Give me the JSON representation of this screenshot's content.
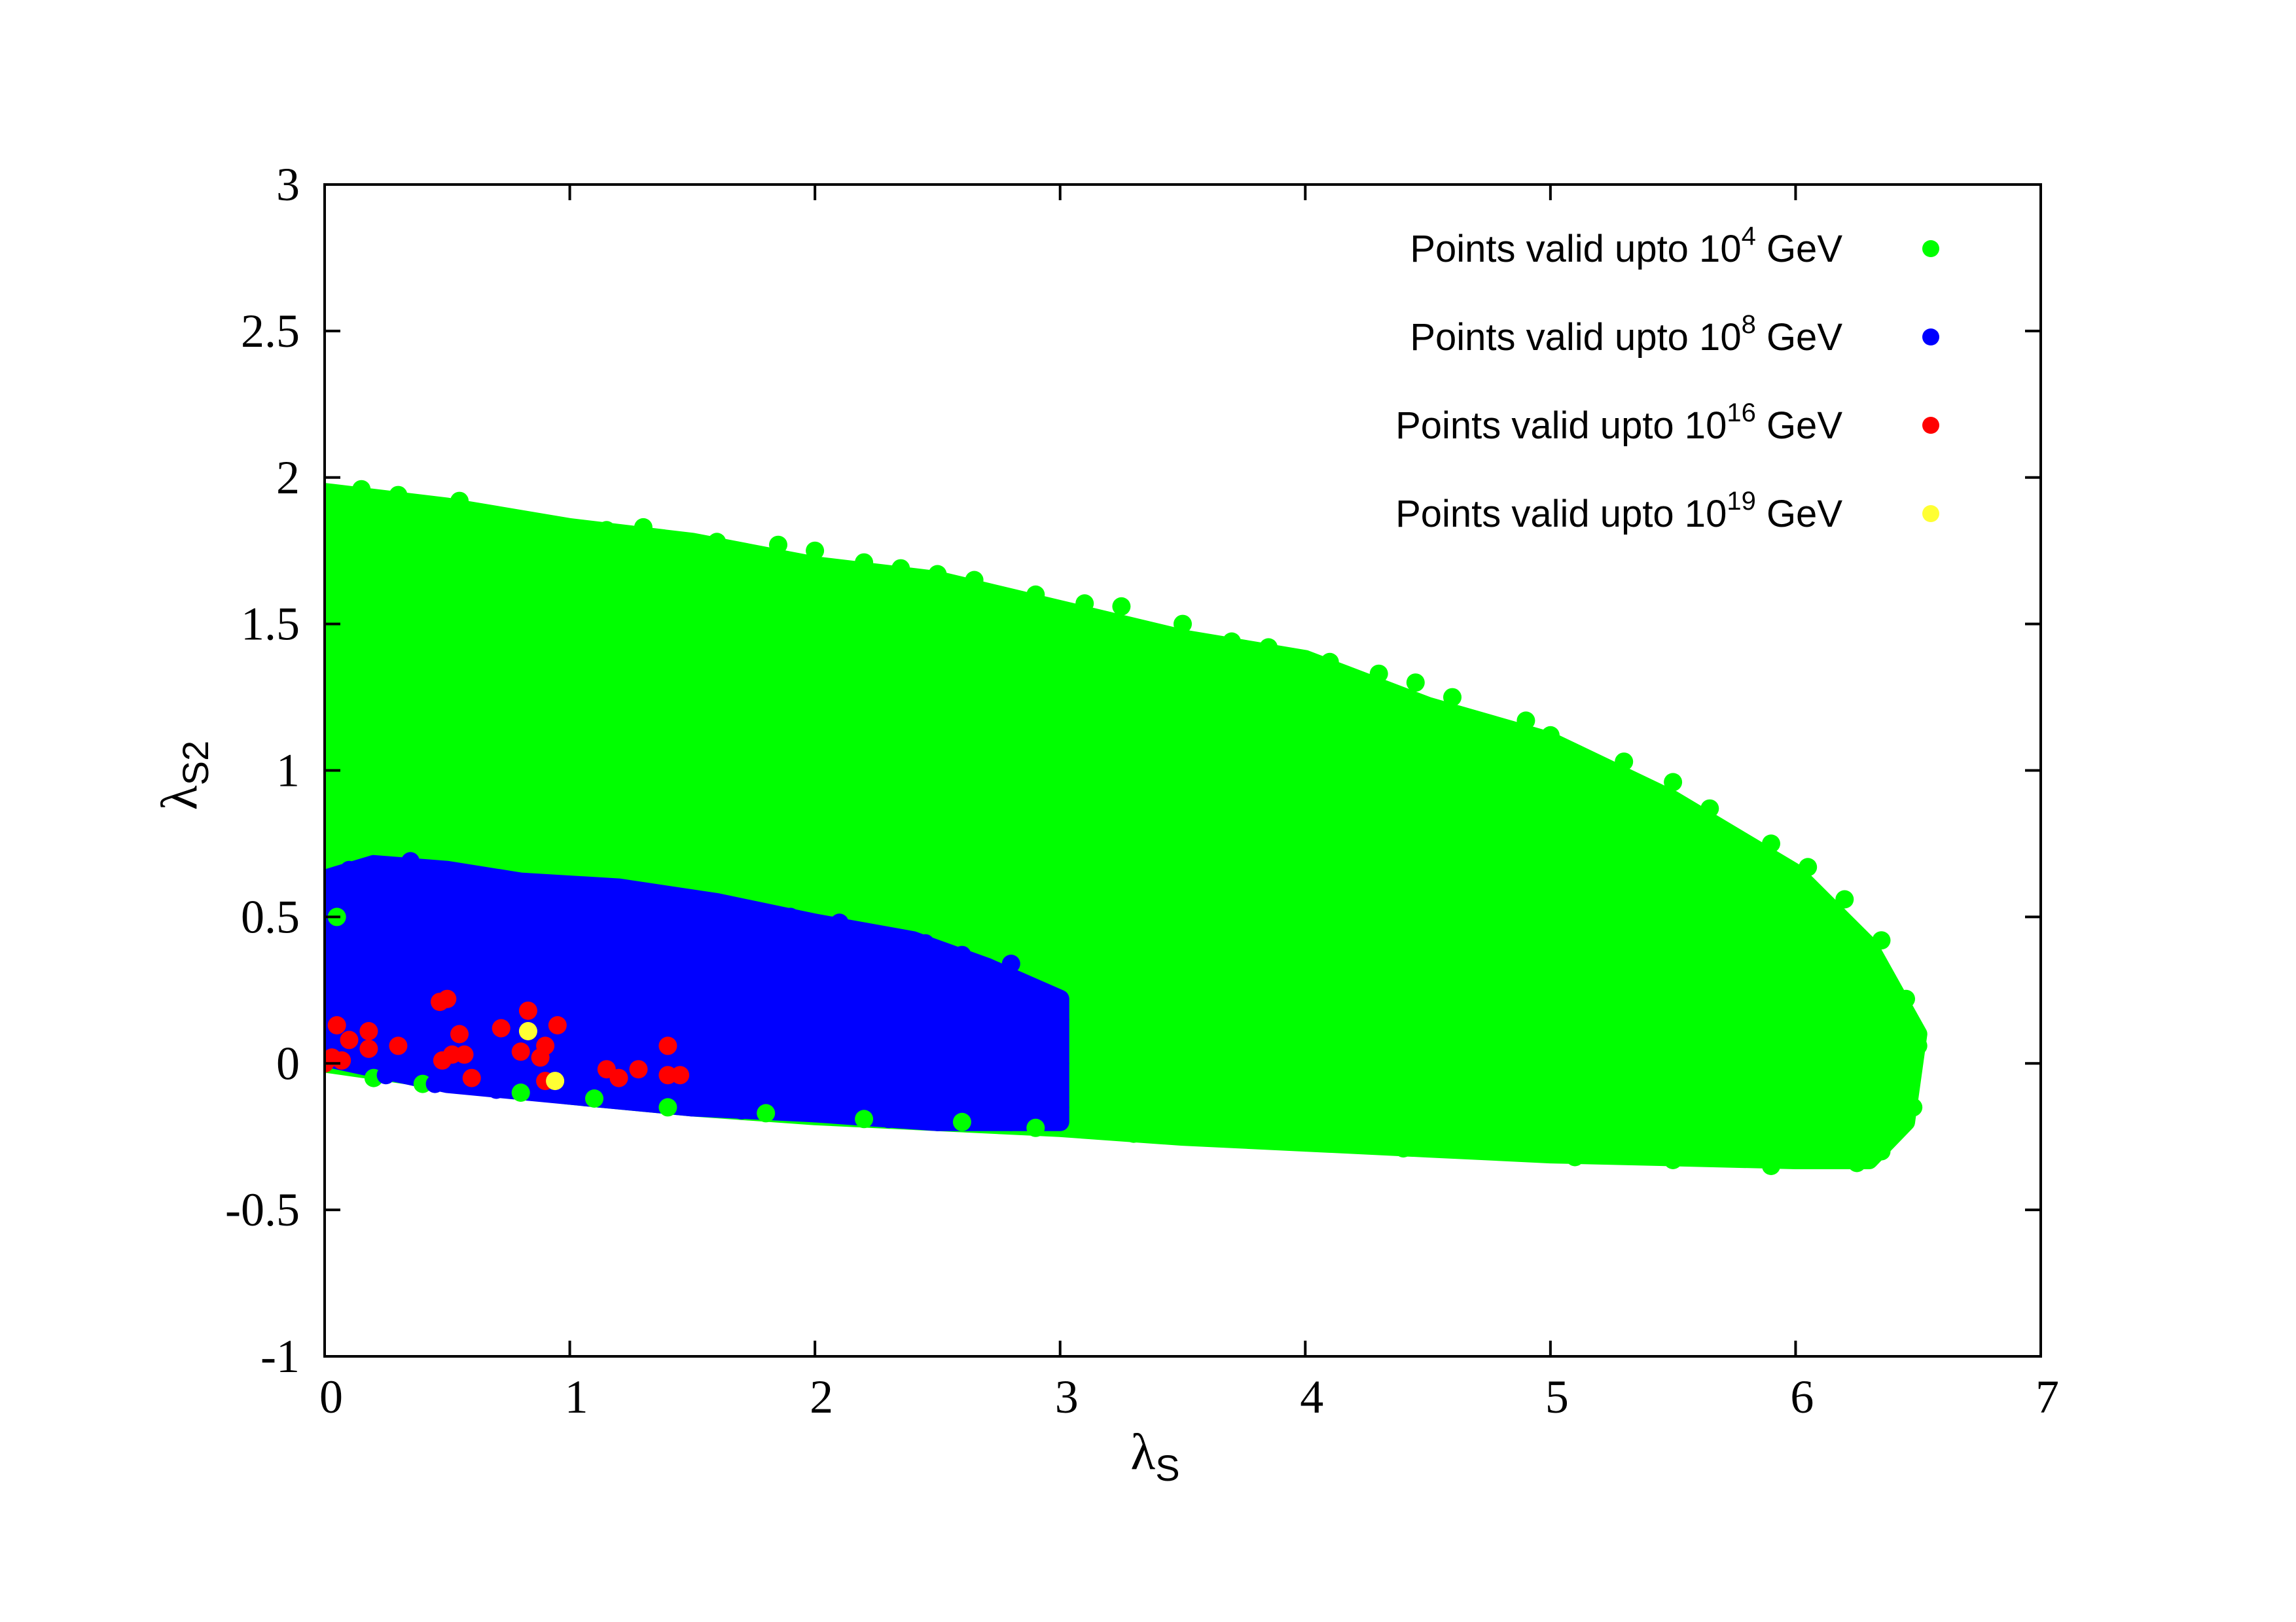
{
  "chart_data": {
    "type": "scatter",
    "title": "",
    "xlabel": {
      "base": "λ",
      "sub": "S"
    },
    "ylabel": {
      "base": "λ",
      "sub": "S2"
    },
    "xlim": [
      0,
      7
    ],
    "ylim": [
      -1,
      3
    ],
    "x_ticks": [
      0,
      1,
      2,
      3,
      4,
      5,
      6,
      7
    ],
    "y_ticks": [
      -1,
      -0.5,
      0,
      0.5,
      1,
      1.5,
      2,
      2.5,
      3
    ],
    "x_tick_labels": [
      "0",
      "1",
      "2",
      "3",
      "4",
      "5",
      "6",
      "7"
    ],
    "y_tick_labels": [
      "-1",
      "-0.5",
      "0",
      "0.5",
      "1",
      "1.5",
      "2",
      "2.5",
      "3"
    ],
    "grid": false,
    "legend_position": "top-right",
    "series": [
      {
        "name": "Points valid upto 10^4 GeV",
        "legend_text": "Points valid upto 10",
        "legend_sup": "4",
        "legend_suffix": " GeV",
        "color": "#00ff00",
        "region": {
          "upper": [
            [
              0,
              1.95
            ],
            [
              0.5,
              1.9
            ],
            [
              1,
              1.83
            ],
            [
              1.5,
              1.78
            ],
            [
              2,
              1.7
            ],
            [
              2.5,
              1.65
            ],
            [
              3,
              1.55
            ],
            [
              3.5,
              1.45
            ],
            [
              4,
              1.38
            ],
            [
              4.5,
              1.22
            ],
            [
              5,
              1.1
            ],
            [
              5.5,
              0.9
            ],
            [
              6,
              0.65
            ],
            [
              6.3,
              0.4
            ],
            [
              6.5,
              0.1
            ]
          ],
          "lower": [
            [
              6.5,
              0.1
            ],
            [
              6.45,
              -0.2
            ],
            [
              6.3,
              -0.33
            ],
            [
              6,
              -0.33
            ],
            [
              5.5,
              -0.32
            ],
            [
              5,
              -0.31
            ],
            [
              4.5,
              -0.29
            ],
            [
              4,
              -0.27
            ],
            [
              3.5,
              -0.25
            ],
            [
              3,
              -0.22
            ],
            [
              2.5,
              -0.2
            ],
            [
              2,
              -0.18
            ],
            [
              1.5,
              -0.15
            ],
            [
              1,
              -0.11
            ],
            [
              0.5,
              -0.06
            ],
            [
              0,
              0
            ]
          ]
        },
        "points": [
          [
            0.02,
            1.92
          ],
          [
            0.15,
            1.96
          ],
          [
            0.3,
            1.94
          ],
          [
            0.55,
            1.92
          ],
          [
            0.7,
            1.86
          ],
          [
            0.9,
            1.84
          ],
          [
            1.15,
            1.82
          ],
          [
            1.3,
            1.83
          ],
          [
            1.6,
            1.78
          ],
          [
            1.85,
            1.77
          ],
          [
            2,
            1.75
          ],
          [
            2.2,
            1.71
          ],
          [
            2.35,
            1.69
          ],
          [
            2.5,
            1.67
          ],
          [
            2.65,
            1.65
          ],
          [
            2.9,
            1.6
          ],
          [
            3.1,
            1.57
          ],
          [
            3.25,
            1.56
          ],
          [
            3.5,
            1.5
          ],
          [
            3.7,
            1.44
          ],
          [
            3.85,
            1.42
          ],
          [
            4.1,
            1.37
          ],
          [
            4.3,
            1.33
          ],
          [
            4.45,
            1.3
          ],
          [
            4.6,
            1.25
          ],
          [
            4.9,
            1.17
          ],
          [
            5,
            1.12
          ],
          [
            5.3,
            1.03
          ],
          [
            5.5,
            0.96
          ],
          [
            5.65,
            0.87
          ],
          [
            5.9,
            0.75
          ],
          [
            6.05,
            0.67
          ],
          [
            6.2,
            0.56
          ],
          [
            6.35,
            0.42
          ],
          [
            6.45,
            0.22
          ],
          [
            6.5,
            0.06
          ],
          [
            6.48,
            -0.15
          ],
          [
            6.35,
            -0.3
          ],
          [
            6.25,
            -0.34
          ],
          [
            5.9,
            -0.35
          ],
          [
            5.5,
            -0.33
          ],
          [
            5.1,
            -0.32
          ],
          [
            4.8,
            -0.3
          ],
          [
            4.4,
            -0.29
          ],
          [
            4.0,
            -0.27
          ],
          [
            3.6,
            -0.25
          ],
          [
            3.3,
            -0.24
          ],
          [
            2.9,
            -0.22
          ],
          [
            2.6,
            -0.2
          ],
          [
            2.2,
            -0.19
          ],
          [
            1.8,
            -0.17
          ],
          [
            1.4,
            -0.15
          ],
          [
            1.1,
            -0.12
          ],
          [
            0.8,
            -0.1
          ],
          [
            0.4,
            -0.07
          ],
          [
            0.2,
            -0.05
          ],
          [
            0,
            1.2
          ],
          [
            0,
            1.5
          ],
          [
            0,
            1.8
          ],
          [
            0.05,
            0.5
          ],
          [
            0.02,
            1.0
          ]
        ]
      },
      {
        "name": "Points valid upto 10^8 GeV",
        "legend_text": "Points valid upto 10",
        "legend_sup": "8",
        "legend_suffix": " GeV",
        "color": "#0000ff",
        "region": {
          "upper": [
            [
              0,
              0.63
            ],
            [
              0.2,
              0.68
            ],
            [
              0.5,
              0.66
            ],
            [
              0.8,
              0.62
            ],
            [
              1.2,
              0.6
            ],
            [
              1.6,
              0.55
            ],
            [
              2,
              0.48
            ],
            [
              2.4,
              0.42
            ],
            [
              2.7,
              0.33
            ],
            [
              3,
              0.22
            ]
          ],
          "lower": [
            [
              3,
              0.22
            ],
            [
              3,
              -0.2
            ],
            [
              2.5,
              -0.2
            ],
            [
              2,
              -0.17
            ],
            [
              1.5,
              -0.15
            ],
            [
              1,
              -0.11
            ],
            [
              0.5,
              -0.07
            ],
            [
              0,
              0.02
            ]
          ]
        },
        "points": [
          [
            0.02,
            0.6
          ],
          [
            0.1,
            0.66
          ],
          [
            0.35,
            0.69
          ],
          [
            0.55,
            0.65
          ],
          [
            0.75,
            0.61
          ],
          [
            0.95,
            0.6
          ],
          [
            1.1,
            0.6
          ],
          [
            1.35,
            0.58
          ],
          [
            1.5,
            0.55
          ],
          [
            1.65,
            0.54
          ],
          [
            1.9,
            0.5
          ],
          [
            2.1,
            0.48
          ],
          [
            2.3,
            0.43
          ],
          [
            2.45,
            0.41
          ],
          [
            2.6,
            0.37
          ],
          [
            2.8,
            0.34
          ],
          [
            2.95,
            0.22
          ],
          [
            3,
            0.15
          ],
          [
            3,
            0
          ],
          [
            3,
            -0.15
          ],
          [
            2.8,
            -0.2
          ],
          [
            2.5,
            -0.2
          ],
          [
            2.3,
            -0.19
          ],
          [
            2.0,
            -0.17
          ],
          [
            1.7,
            -0.16
          ],
          [
            1.5,
            -0.15
          ],
          [
            1.2,
            -0.12
          ],
          [
            0.9,
            -0.1
          ],
          [
            0.7,
            -0.09
          ],
          [
            0.45,
            -0.07
          ],
          [
            0.25,
            -0.04
          ],
          [
            0.0,
            0.35
          ]
        ]
      },
      {
        "name": "Points valid upto 10^16 GeV",
        "legend_text": "Points valid upto 10",
        "legend_sup": "16",
        "legend_suffix": " GeV",
        "color": "#ff0000",
        "points": [
          [
            0.0,
            0.0
          ],
          [
            0.03,
            0.02
          ],
          [
            0.05,
            0.13
          ],
          [
            0.07,
            0.01
          ],
          [
            0.1,
            0.08
          ],
          [
            0.18,
            0.11
          ],
          [
            0.18,
            0.05
          ],
          [
            0.3,
            0.06
          ],
          [
            0.47,
            0.21
          ],
          [
            0.5,
            0.22
          ],
          [
            0.48,
            0.01
          ],
          [
            0.52,
            0.03
          ],
          [
            0.55,
            0.1
          ],
          [
            0.57,
            0.03
          ],
          [
            0.6,
            -0.05
          ],
          [
            0.72,
            0.12
          ],
          [
            0.8,
            0.04
          ],
          [
            0.83,
            0.18
          ],
          [
            0.88,
            0.02
          ],
          [
            0.9,
            0.06
          ],
          [
            0.9,
            -0.06
          ],
          [
            0.95,
            0.13
          ],
          [
            1.15,
            -0.02
          ],
          [
            1.2,
            -0.05
          ],
          [
            1.28,
            -0.02
          ],
          [
            1.4,
            0.06
          ],
          [
            1.4,
            -0.04
          ],
          [
            1.45,
            -0.04
          ]
        ]
      },
      {
        "name": "Points valid upto 10^19 GeV",
        "legend_text": "Points valid upto 10",
        "legend_sup": "19",
        "legend_suffix": " GeV",
        "color": "#ffff33",
        "points": [
          [
            0.83,
            0.11
          ],
          [
            0.94,
            -0.06
          ]
        ]
      }
    ]
  }
}
